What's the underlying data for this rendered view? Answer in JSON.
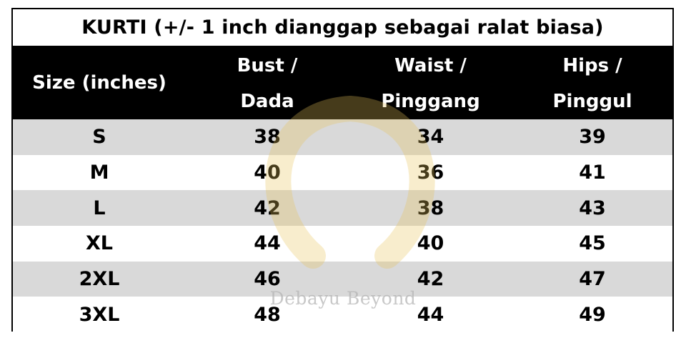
{
  "title": "KURTI (+/- 1 inch dianggap sebagai ralat biasa)",
  "columns": [
    {
      "line1": "Size (inches)",
      "line2": ""
    },
    {
      "line1": "Bust /",
      "line2": "Dada"
    },
    {
      "line1": "Waist /",
      "line2": "Pinggang"
    },
    {
      "line1": "Hips /",
      "line2": "Pinggul"
    }
  ],
  "rows": [
    [
      "S",
      "38",
      "34",
      "39"
    ],
    [
      "M",
      "40",
      "36",
      "41"
    ],
    [
      "L",
      "42",
      "38",
      "43"
    ],
    [
      "XL",
      "44",
      "40",
      "45"
    ],
    [
      "2XL",
      "46",
      "42",
      "47"
    ],
    [
      "3XL",
      "48",
      "44",
      "49"
    ]
  ],
  "watermark": {
    "text": "Debayu Beyond",
    "color": "#e8c35a"
  },
  "colors": {
    "header_bg": "#000000",
    "header_text": "#ffffff",
    "stripe": "#d9d9d9"
  }
}
